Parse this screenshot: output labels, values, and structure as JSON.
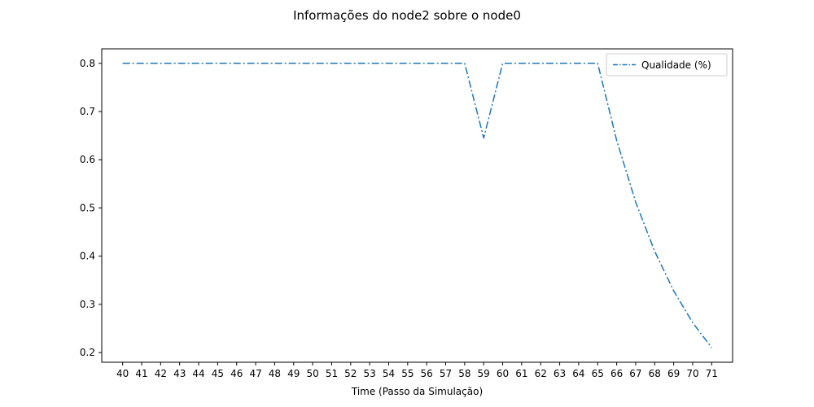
{
  "chart_data": {
    "type": "line",
    "title": "Informações do node2 sobre o node0",
    "xlabel": "Time (Passo da Simulação)",
    "ylabel": "",
    "xlim": [
      38.9,
      72.1
    ],
    "ylim": [
      0.18,
      0.83
    ],
    "x_ticks": [
      40,
      41,
      42,
      43,
      44,
      45,
      46,
      47,
      48,
      49,
      50,
      51,
      52,
      53,
      54,
      55,
      56,
      57,
      58,
      59,
      60,
      61,
      62,
      63,
      64,
      65,
      66,
      67,
      68,
      69,
      70,
      71
    ],
    "y_ticks": [
      0.2,
      0.3,
      0.4,
      0.5,
      0.6,
      0.7,
      0.8
    ],
    "grid": false,
    "legend_position": "top-right",
    "series": [
      {
        "name": "Qualidade (%)",
        "color": "#1f77b4",
        "line_style": "dash-dot",
        "x": [
          40,
          41,
          42,
          43,
          44,
          45,
          46,
          47,
          48,
          49,
          50,
          51,
          52,
          53,
          54,
          55,
          56,
          57,
          58,
          59,
          60,
          61,
          62,
          63,
          64,
          65,
          66,
          67,
          68,
          69,
          70,
          71
        ],
        "y": [
          0.8,
          0.8,
          0.8,
          0.8,
          0.8,
          0.8,
          0.8,
          0.8,
          0.8,
          0.8,
          0.8,
          0.8,
          0.8,
          0.8,
          0.8,
          0.8,
          0.8,
          0.8,
          0.8,
          0.645,
          0.8,
          0.8,
          0.8,
          0.8,
          0.8,
          0.8,
          0.64,
          0.512,
          0.41,
          0.328,
          0.262,
          0.21
        ]
      }
    ]
  }
}
